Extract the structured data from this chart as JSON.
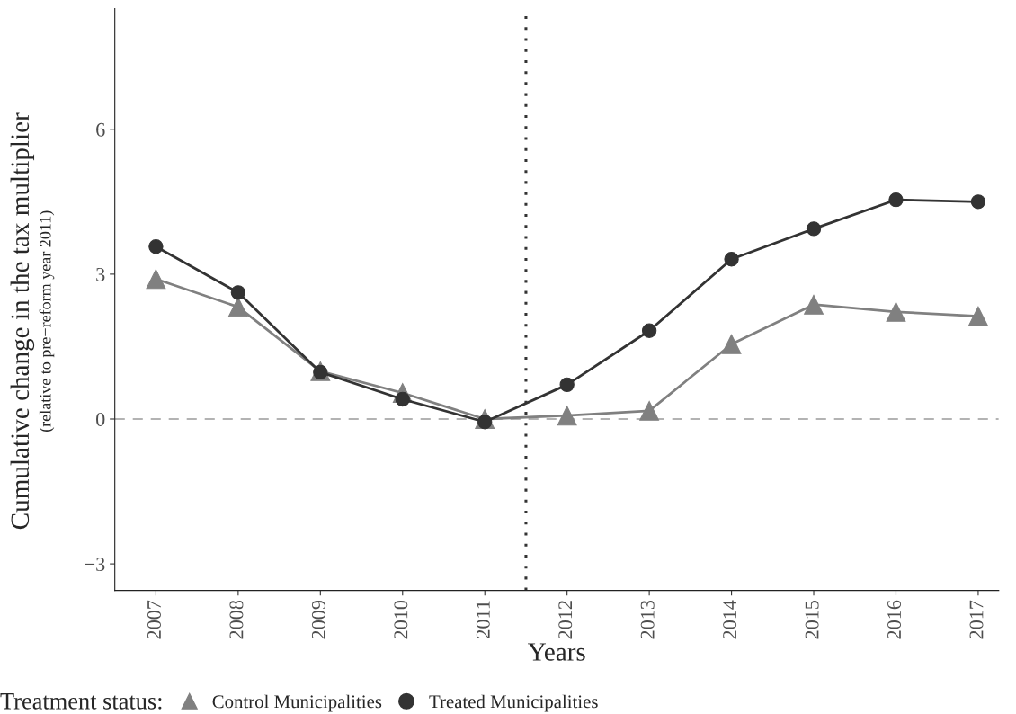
{
  "chart_data": {
    "type": "line",
    "xlabel": "Years",
    "ylabel": "Cumulative change in the tax multiplier",
    "subtitle": "(relative to pre−reform year 2011)",
    "legend_title": "Treatment status:",
    "x": [
      2007,
      2008,
      2009,
      2010,
      2011,
      2012,
      2013,
      2014,
      2015,
      2016,
      2017
    ],
    "series": [
      {
        "name": "Control Municipalities",
        "color": "#808080",
        "marker": "triangle",
        "values": [
          2.9,
          2.32,
          0.99,
          0.54,
          0.0,
          0.07,
          0.17,
          1.55,
          2.37,
          2.22,
          2.13
        ]
      },
      {
        "name": "Treated Municipalities",
        "color": "#333333",
        "marker": "circle",
        "values": [
          3.57,
          2.62,
          0.97,
          0.41,
          -0.06,
          0.71,
          1.83,
          3.31,
          3.94,
          4.54,
          4.5
        ]
      }
    ],
    "xlim": [
      2006.5,
      2017.25
    ],
    "xticks": [
      2007,
      2008,
      2009,
      2010,
      2011,
      2012,
      2013,
      2014,
      2015,
      2016,
      2017
    ],
    "ylim": [
      -3.55,
      8.5
    ],
    "yticks": [
      -3,
      0,
      3,
      6
    ],
    "ref_lines": [
      {
        "axis": "y",
        "value": 0,
        "color": "#b3b3b3",
        "line_style": "dashed"
      },
      {
        "axis": "x",
        "value": 2011.5,
        "color": "#333333",
        "line_style": "dotted"
      }
    ],
    "grid": false,
    "legend": "bottom",
    "line_style": "solid"
  }
}
